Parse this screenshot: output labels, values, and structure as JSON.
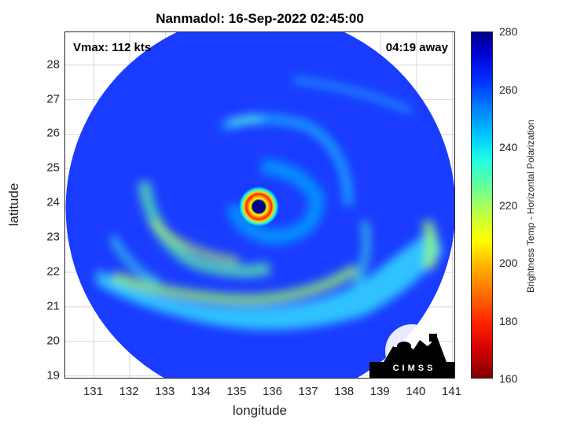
{
  "title": "Nanmadol: 16-Sep-2022 02:45:00",
  "annotations": {
    "vmax": "Vmax: 112 kts",
    "away": "04:19 away"
  },
  "xaxis": {
    "label": "longitude",
    "ticks": [
      "131",
      "132",
      "133",
      "134",
      "135",
      "136",
      "137",
      "138",
      "139",
      "140",
      "141"
    ],
    "range": [
      130.2,
      141.1
    ]
  },
  "yaxis": {
    "label": "latitude",
    "ticks": [
      "28",
      "27",
      "26",
      "25",
      "24",
      "23",
      "22",
      "21",
      "20",
      "19"
    ],
    "range": [
      18.9,
      28.95
    ]
  },
  "colorbar": {
    "title": "Brightness Temp - Horizontal Polarization",
    "ticks": [
      "280",
      "260",
      "240",
      "220",
      "200",
      "180",
      "160"
    ],
    "range": [
      160,
      280
    ]
  },
  "storm": {
    "eye_lon": 135.6,
    "eye_lat": 23.9,
    "swath_center_lon": 135.65,
    "swath_center_lat": 23.85
  },
  "logo": {
    "text": "CIMSS"
  },
  "colors": {
    "background_blue": "#1a3cff",
    "eye": "#0000a0"
  }
}
